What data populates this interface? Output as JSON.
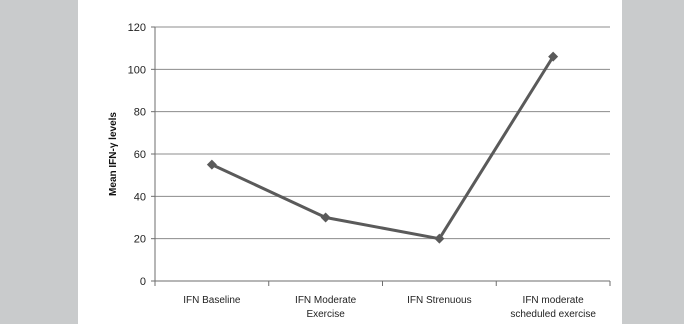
{
  "chart_data": {
    "type": "line",
    "categories": [
      "IFN Baseline",
      "IFN Moderate\nExercise",
      "IFN Strenuous",
      "IFN moderate\nscheduled exercise"
    ],
    "values": [
      55,
      30,
      20,
      106
    ],
    "ylabel": "Mean IFN-γ levels",
    "xlabel": "",
    "title": "",
    "ylim": [
      0,
      120
    ],
    "yticks": [
      0,
      20,
      40,
      60,
      80,
      100,
      120
    ],
    "grid": true,
    "legend": "none",
    "colors": {
      "line": "#5a5a5a",
      "grid": "#8c8c8c",
      "axis": "#6e6e6e"
    }
  }
}
